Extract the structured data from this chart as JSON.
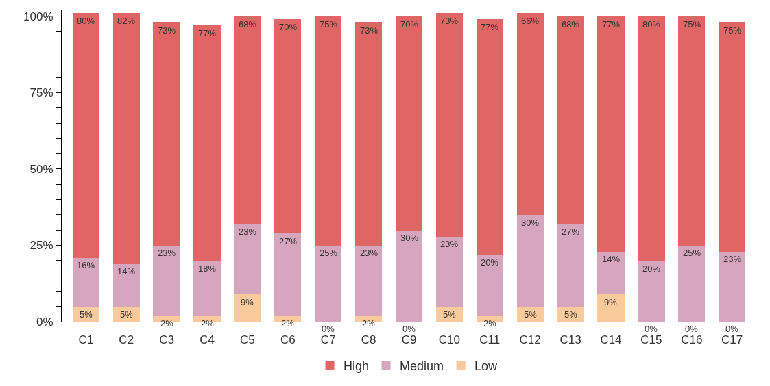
{
  "chart_data": {
    "type": "bar",
    "stacked": true,
    "categories": [
      "C1",
      "C2",
      "C3",
      "C4",
      "C5",
      "C6",
      "C7",
      "C8",
      "C9",
      "C10",
      "C11",
      "C12",
      "C13",
      "C14",
      "C15",
      "C16",
      "C17"
    ],
    "series": [
      {
        "name": "Low",
        "color": "#f9cb9c",
        "values": [
          5,
          5,
          2,
          2,
          9,
          2,
          0,
          2,
          0,
          5,
          2,
          5,
          5,
          9,
          0,
          0,
          0
        ],
        "value_labels": [
          "5%",
          "5%",
          "2%",
          "2%",
          "9%",
          "2%",
          "0%",
          "2%",
          "0%",
          "5%",
          "2%",
          "5%",
          "5%",
          "9%",
          "0%",
          "0%",
          "0%"
        ]
      },
      {
        "name": "Medium",
        "color": "#d5a6bd",
        "values": [
          16,
          14,
          23,
          18,
          23,
          27,
          25,
          23,
          30,
          23,
          20,
          30,
          27,
          14,
          20,
          25,
          23
        ],
        "value_labels": [
          "16%",
          "14%",
          "23%",
          "18%",
          "23%",
          "27%",
          "25%",
          "23%",
          "30%",
          "23%",
          "20%",
          "30%",
          "27%",
          "14%",
          "20%",
          "25%",
          "23%"
        ]
      },
      {
        "name": "High",
        "color": "#e06666",
        "values": [
          80,
          82,
          73,
          77,
          68,
          70,
          75,
          73,
          70,
          73,
          77,
          66,
          68,
          77,
          80,
          75,
          75
        ],
        "value_labels": [
          "80%",
          "82%",
          "73%",
          "77%",
          "68%",
          "70%",
          "75%",
          "73%",
          "70%",
          "73%",
          "77%",
          "66%",
          "68%",
          "77%",
          "80%",
          "75%",
          "75%"
        ]
      }
    ],
    "ylim": [
      0,
      102
    ],
    "yticks": [
      {
        "value": 0,
        "label": "0%"
      },
      {
        "value": 5,
        "label": null
      },
      {
        "value": 10,
        "label": null
      },
      {
        "value": 15,
        "label": null
      },
      {
        "value": 20,
        "label": null
      },
      {
        "value": 25,
        "label": "25%"
      },
      {
        "value": 30,
        "label": null
      },
      {
        "value": 35,
        "label": null
      },
      {
        "value": 40,
        "label": null
      },
      {
        "value": 45,
        "label": null
      },
      {
        "value": 50,
        "label": "50%"
      },
      {
        "value": 55,
        "label": null
      },
      {
        "value": 60,
        "label": null
      },
      {
        "value": 65,
        "label": null
      },
      {
        "value": 70,
        "label": null
      },
      {
        "value": 75,
        "label": "75%"
      },
      {
        "value": 80,
        "label": null
      },
      {
        "value": 85,
        "label": null
      },
      {
        "value": 90,
        "label": null
      },
      {
        "value": 95,
        "label": null
      },
      {
        "value": 100,
        "label": "100%"
      }
    ],
    "legend": "bottom"
  }
}
